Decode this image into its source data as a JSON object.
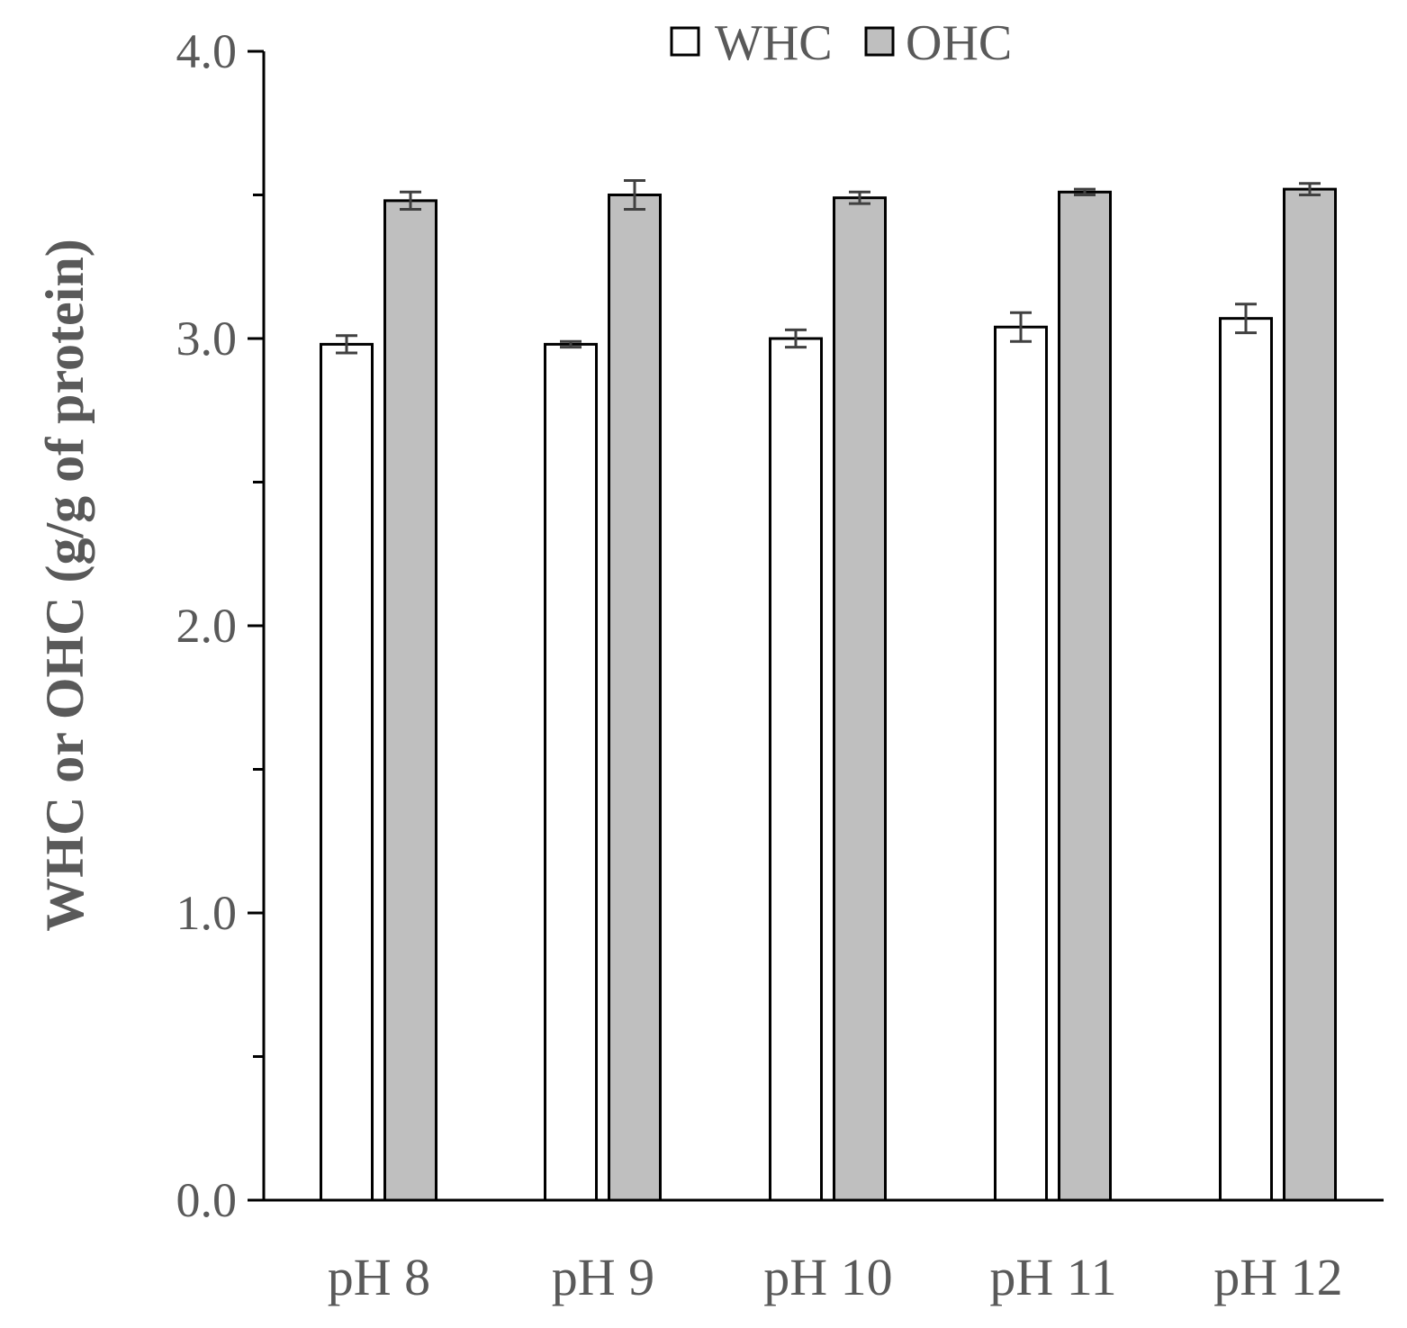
{
  "chart_data": {
    "type": "bar",
    "categories": [
      "pH 8",
      "pH 9",
      "pH 10",
      "pH 11",
      "pH 12"
    ],
    "series": [
      {
        "name": "WHC",
        "values": [
          2.98,
          2.98,
          3.0,
          3.04,
          3.07
        ],
        "errors": [
          0.03,
          0.01,
          0.03,
          0.05,
          0.05
        ],
        "color": "#ffffff"
      },
      {
        "name": "OHC",
        "values": [
          3.48,
          3.5,
          3.49,
          3.51,
          3.52
        ],
        "errors": [
          0.03,
          0.05,
          0.02,
          0.01,
          0.02
        ],
        "color": "#bfbfbf"
      }
    ],
    "xlabel": "",
    "ylabel": "WHC or OHC (g/g of protein)",
    "ylim": [
      0,
      4.0
    ],
    "yticks": [
      "0.0",
      "1.0",
      "2.0",
      "3.0",
      "4.0"
    ],
    "minor_yticks": [
      0.5,
      1.5,
      2.5,
      3.5
    ],
    "grid": false,
    "legend_position": "top-center",
    "colors": {
      "axis": "#000000",
      "text": "#595959",
      "bar_outline": "#000000",
      "error_bar": "#404040"
    }
  }
}
